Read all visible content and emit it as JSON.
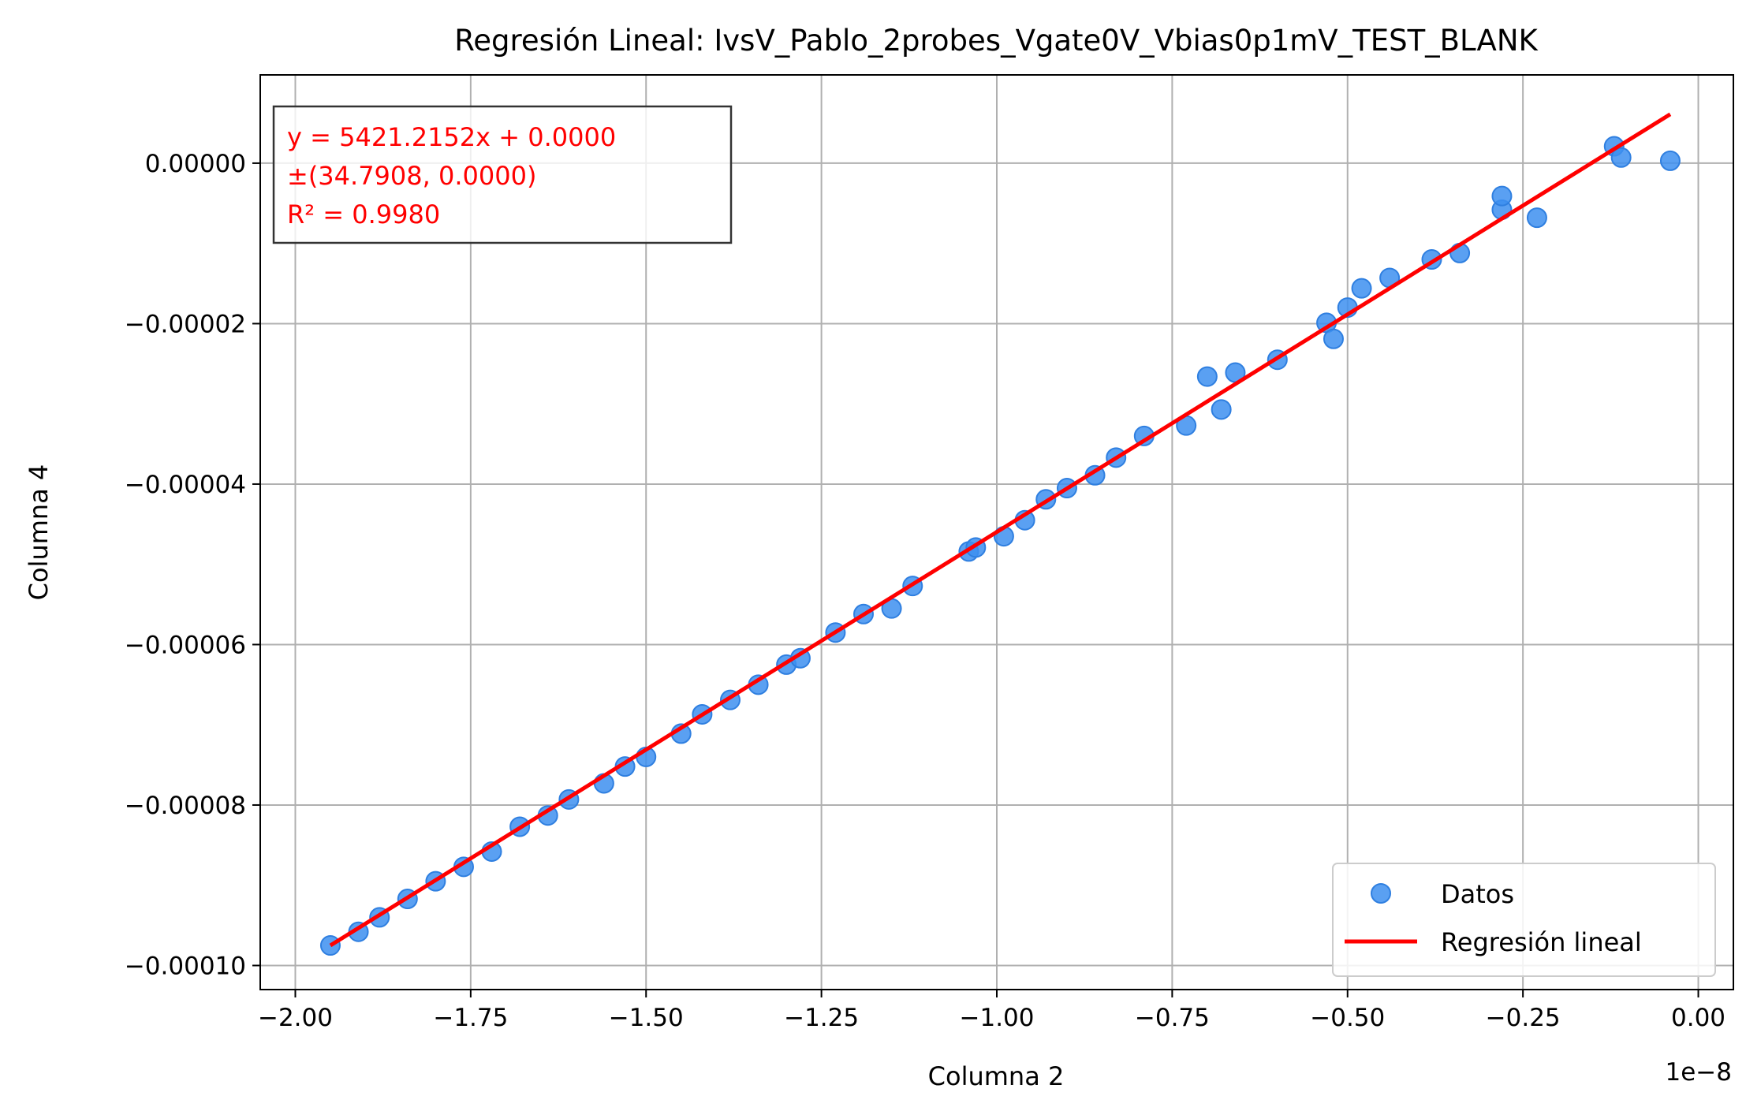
{
  "chart_data": {
    "type": "scatter",
    "title": "Regresión Lineal: IvsV_Pablo_2probes_Vgate0V_Vbias0p1mV_TEST_BLANK",
    "xlabel": "Columna 2",
    "ylabel": "Columna 4",
    "x_offset_label": "1e−8",
    "xlim": [
      -2.05,
      0.05
    ],
    "ylim": [
      -0.000103,
      1.1e-05
    ],
    "x_ticks": [
      -2.0,
      -1.75,
      -1.5,
      -1.25,
      -1.0,
      -0.75,
      -0.5,
      -0.25,
      0.0
    ],
    "x_tick_labels": [
      "−2.00",
      "−1.75",
      "−1.50",
      "−1.25",
      "−1.00",
      "−0.75",
      "−0.50",
      "−0.25",
      "0.00"
    ],
    "y_ticks": [
      0.0,
      -2e-05,
      -4e-05,
      -6e-05,
      -8e-05,
      -0.0001
    ],
    "y_tick_labels": [
      "0.00000",
      "−0.00002",
      "−0.00004",
      "−0.00006",
      "−0.00008",
      "−0.00010"
    ],
    "grid": true,
    "legend_position": "lower-right",
    "colors": {
      "points": "#3d8ff0",
      "points_edge": "#2f7fe0",
      "line": "#ff0000",
      "annotation_text": "#ff0000"
    },
    "annotation": {
      "lines": [
        "y = 5421.2152x + 0.0000",
        "±(34.7908, 0.0000)",
        "R² = 0.9980"
      ]
    },
    "series": [
      {
        "name": "Datos",
        "kind": "scatter",
        "x": [
          -1.95,
          -1.91,
          -1.88,
          -1.84,
          -1.8,
          -1.76,
          -1.72,
          -1.68,
          -1.64,
          -1.61,
          -1.56,
          -1.53,
          -1.5,
          -1.45,
          -1.42,
          -1.38,
          -1.34,
          -1.3,
          -1.28,
          -1.23,
          -1.19,
          -1.15,
          -1.12,
          -1.04,
          -1.03,
          -0.99,
          -0.96,
          -0.93,
          -0.9,
          -0.86,
          -0.83,
          -0.79,
          -0.73,
          -0.7,
          -0.68,
          -0.66,
          -0.6,
          -0.53,
          -0.52,
          -0.5,
          -0.48,
          -0.44,
          -0.38,
          -0.34,
          -0.28,
          -0.28,
          -0.23,
          -0.12,
          -0.11,
          -0.04
        ],
        "y": [
          -9.75e-05,
          -9.58e-05,
          -9.4e-05,
          -9.17e-05,
          -8.95e-05,
          -8.77e-05,
          -8.58e-05,
          -8.27e-05,
          -8.13e-05,
          -7.93e-05,
          -7.73e-05,
          -7.52e-05,
          -7.4e-05,
          -7.11e-05,
          -6.87e-05,
          -6.69e-05,
          -6.5e-05,
          -6.25e-05,
          -6.17e-05,
          -5.85e-05,
          -5.62e-05,
          -5.55e-05,
          -5.27e-05,
          -4.84e-05,
          -4.79e-05,
          -4.65e-05,
          -4.45e-05,
          -4.19e-05,
          -4.05e-05,
          -3.89e-05,
          -3.67e-05,
          -3.4e-05,
          -3.27e-05,
          -2.66e-05,
          -3.07e-05,
          -2.61e-05,
          -2.45e-05,
          -1.99e-05,
          -2.19e-05,
          -1.8e-05,
          -1.56e-05,
          -1.43e-05,
          -1.2e-05,
          -1.12e-05,
          -5.8e-06,
          -4.1e-06,
          -6.8e-06,
          2.1e-06,
          7e-07,
          3e-07
        ]
      },
      {
        "name": "Regresión lineal",
        "kind": "line",
        "x": [
          -1.95,
          -0.04
        ],
        "y": [
          -9.75e-05,
          6.1e-06
        ]
      }
    ]
  }
}
